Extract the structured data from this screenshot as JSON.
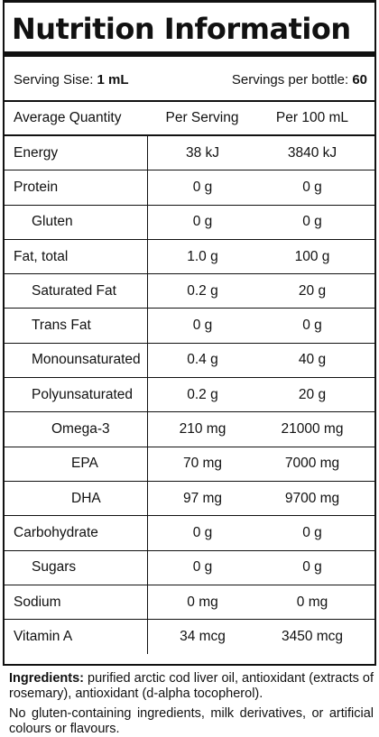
{
  "title": "Nutrition Information",
  "serving": {
    "size_label": "Serving Sise: ",
    "size_value": "1 mL",
    "per_bottle_label": "Servings per bottle: ",
    "per_bottle_value": "60"
  },
  "table": {
    "headers": [
      "Average Quantity",
      "Per Serving",
      "Per 100 mL"
    ],
    "rows": [
      {
        "name": "Energy",
        "per_serving": "38 kJ",
        "per_100": "3840 kJ",
        "level": 0
      },
      {
        "name": "Protein",
        "per_serving": "0 g",
        "per_100": "0 g",
        "level": 0
      },
      {
        "name": "Gluten",
        "per_serving": "0 g",
        "per_100": "0 g",
        "level": 1
      },
      {
        "name": "Fat, total",
        "per_serving": "1.0 g",
        "per_100": "100 g",
        "level": 0
      },
      {
        "name": "Saturated Fat",
        "per_serving": "0.2 g",
        "per_100": "20 g",
        "level": 1
      },
      {
        "name": "Trans Fat",
        "per_serving": "0 g",
        "per_100": "0 g",
        "level": 1
      },
      {
        "name": "Monounsaturated",
        "per_serving": "0.4 g",
        "per_100": "40 g",
        "level": 1
      },
      {
        "name": "Polyunsaturated",
        "per_serving": "0.2 g",
        "per_100": "20 g",
        "level": 1
      },
      {
        "name": "Omega-3",
        "per_serving": "210 mg",
        "per_100": "21000 mg",
        "level": 2
      },
      {
        "name": "EPA",
        "per_serving": "70 mg",
        "per_100": "7000 mg",
        "level": 3
      },
      {
        "name": "DHA",
        "per_serving": "97 mg",
        "per_100": "9700 mg",
        "level": 3
      },
      {
        "name": "Carbohydrate",
        "per_serving": "0 g",
        "per_100": "0 g",
        "level": 0
      },
      {
        "name": "Sugars",
        "per_serving": "0 g",
        "per_100": "0 g",
        "level": 1
      },
      {
        "name": "Sodium",
        "per_serving": "0 mg",
        "per_100": "0 mg",
        "level": 0
      },
      {
        "name": "Vitamin A",
        "per_serving": "34 mcg",
        "per_100": "3450 mcg",
        "level": 0
      }
    ]
  },
  "ingredients": {
    "label": "Ingredients:",
    "text": " purified arctic cod liver oil, antioxidant (extracts of rosemary), antioxidant (d-alpha tocopherol).",
    "note": "No gluten-containing ingredients, milk derivatives, or artificial colours or flavours."
  }
}
